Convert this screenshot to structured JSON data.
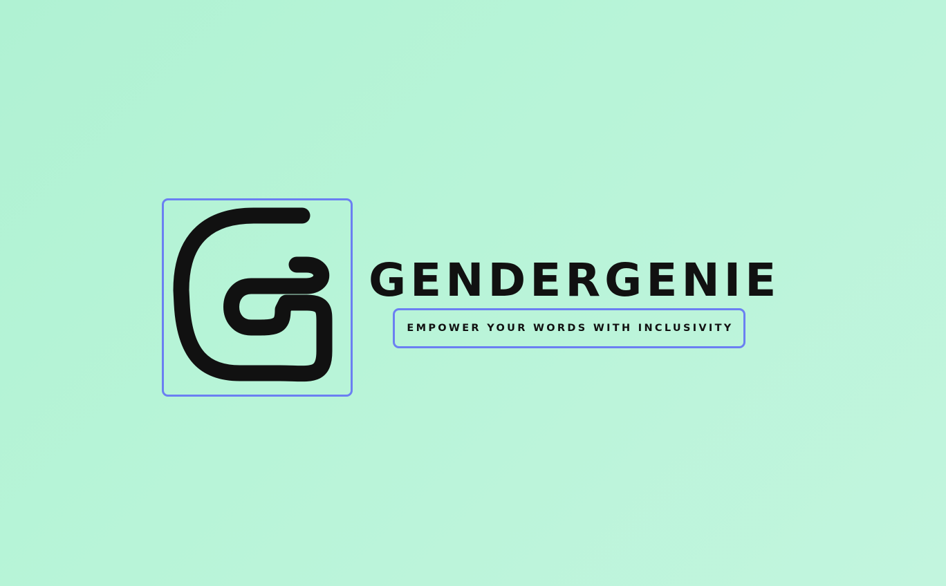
{
  "brand": {
    "name": "GENDERGENIE",
    "tagline": "EMPOWER YOUR WORDS WITH INCLUSIVITY",
    "logo_icon": "g-monogram-icon"
  },
  "colors": {
    "background": "#b8f4d8",
    "text": "#111111",
    "highlight_border": "#6b7ff2"
  }
}
